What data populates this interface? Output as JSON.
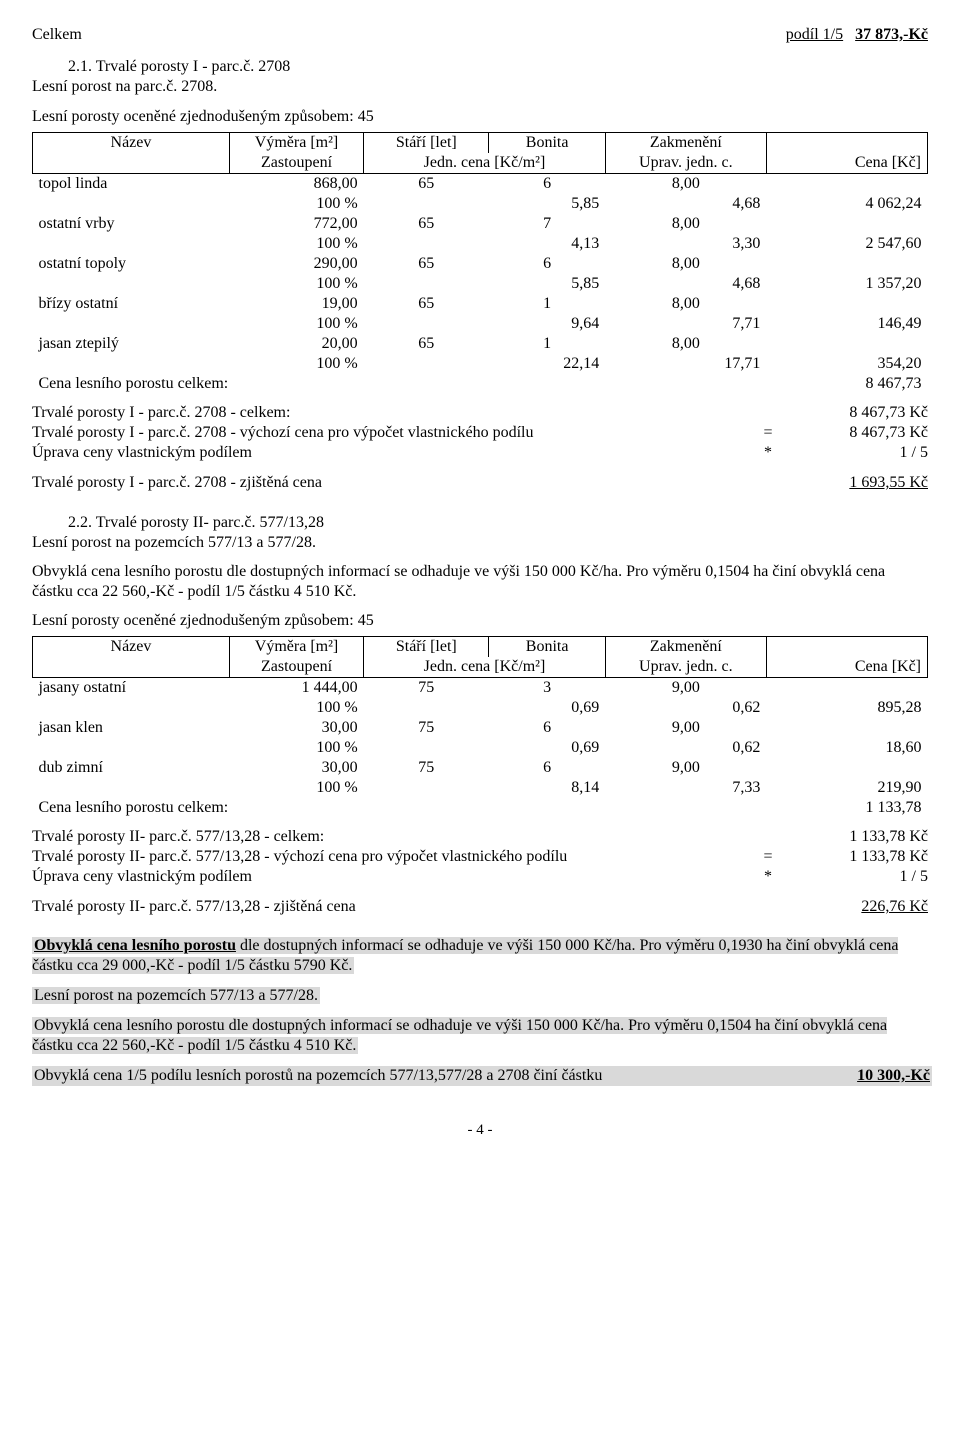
{
  "top": {
    "left": "Celkem",
    "right_label": "podíl 1/5",
    "right_value": "37 873,-Kč"
  },
  "sec21": {
    "title": "2.1. Trvalé porosty I - parc.č. 2708",
    "subtitle": "Lesní porost na parc.č. 2708.",
    "method": "Lesní porosty oceněné zjednodušeným způsobem: 45",
    "header": {
      "nazev": "Název",
      "vymera": "Výměra [m²]",
      "stari": "Stáří [let]",
      "bonita": "Bonita",
      "zakm": "Zakmenění",
      "zast": "Zastoupení",
      "jedn": "Jedn. cena [Kč/m²]",
      "uprav": "Uprav. jedn. c.",
      "cena": "Cena [Kč]"
    },
    "rows": [
      {
        "name": "topol linda",
        "v1": "868,00",
        "v2": "65",
        "v3": "6",
        "v4": "8,00",
        "p": "100 %",
        "j": "5,85",
        "u": "4,68",
        "c": "4 062,24"
      },
      {
        "name": "ostatní vrby",
        "v1": "772,00",
        "v2": "65",
        "v3": "7",
        "v4": "8,00",
        "p": "100 %",
        "j": "4,13",
        "u": "3,30",
        "c": "2 547,60"
      },
      {
        "name": "ostatní topoly",
        "v1": "290,00",
        "v2": "65",
        "v3": "6",
        "v4": "8,00",
        "p": "100 %",
        "j": "5,85",
        "u": "4,68",
        "c": "1 357,20"
      },
      {
        "name": "břízy ostatní",
        "v1": "19,00",
        "v2": "65",
        "v3": "1",
        "v4": "8,00",
        "p": "100 %",
        "j": "9,64",
        "u": "7,71",
        "c": "146,49"
      },
      {
        "name": "jasan ztepilý",
        "v1": "20,00",
        "v2": "65",
        "v3": "1",
        "v4": "8,00",
        "p": "100 %",
        "j": "22,14",
        "u": "17,71",
        "c": "354,20"
      }
    ],
    "total_label": "Cena lesního porostu celkem:",
    "total_value": "8 467,73",
    "sum": [
      {
        "l": "Trvalé porosty I - parc.č. 2708 - celkem:",
        "m": "",
        "r": "8 467,73 Kč"
      },
      {
        "l": "Trvalé porosty I - parc.č. 2708 - výchozí cena pro výpočet vlastnického podílu",
        "m": "=",
        "r": "8 467,73 Kč"
      },
      {
        "l": "Úprava ceny vlastnickým podílem",
        "m": "*",
        "r": "1 / 5"
      }
    ],
    "final_l": "Trvalé porosty I - parc.č. 2708 - zjištěná cena",
    "final_r": "1 693,55 Kč"
  },
  "sec22": {
    "title": "2.2. Trvalé porosty II- parc.č. 577/13,28",
    "subtitle": "Lesní porost na pozemcích 577/13 a 577/28.",
    "para1": "Obvyklá cena lesního porostu dle dostupných informací se odhaduje ve výši 150 000 Kč/ha. Pro výměru 0,1504 ha činí obvyklá cena částku cca 22 560,-Kč - podíl 1/5 částku 4 510 Kč.",
    "method": "Lesní porosty oceněné zjednodušeným způsobem: 45",
    "rows": [
      {
        "name": "jasany ostatní",
        "v1": "1 444,00",
        "v2": "75",
        "v3": "3",
        "v4": "9,00",
        "p": "100 %",
        "j": "0,69",
        "u": "0,62",
        "c": "895,28"
      },
      {
        "name": "jasan klen",
        "v1": "30,00",
        "v2": "75",
        "v3": "6",
        "v4": "9,00",
        "p": "100 %",
        "j": "0,69",
        "u": "0,62",
        "c": "18,60"
      },
      {
        "name": "dub zimní",
        "v1": "30,00",
        "v2": "75",
        "v3": "6",
        "v4": "9,00",
        "p": "100 %",
        "j": "8,14",
        "u": "7,33",
        "c": "219,90"
      }
    ],
    "total_label": "Cena lesního porostu celkem:",
    "total_value": "1 133,78",
    "sum": [
      {
        "l": "Trvalé porosty II- parc.č. 577/13,28 - celkem:",
        "m": "",
        "r": "1 133,78 Kč"
      },
      {
        "l": "Trvalé porosty II- parc.č. 577/13,28 - výchozí cena pro výpočet vlastnického podílu",
        "m": "=",
        "r": "1 133,78 Kč"
      },
      {
        "l": "Úprava ceny vlastnickým podílem",
        "m": "*",
        "r": "1 / 5"
      }
    ],
    "final_l": "Trvalé porosty II- parc.č. 577/13,28 - zjištěná cena",
    "final_r": "226,76 Kč"
  },
  "hl": {
    "p1_a": "Obvyklá cena lesního porostu",
    "p1_b": " dle dostupných informací se odhaduje ve výši 150 000 Kč/ha. Pro výměru 0,1930 ha činí obvyklá cena částku cca 29 000,-Kč - podíl 1/5 částku 5790 Kč.",
    "p2": "Lesní porost na pozemcích 577/13 a 577/28.",
    "p3": "Obvyklá cena lesního porostu dle dostupných informací se odhaduje ve výši 150 000 Kč/ha. Pro výměru 0,1504 ha činí obvyklá cena částku cca 22 560,-Kč - podíl 1/5 částku 4 510 Kč.",
    "p4_l": "Obvyklá cena 1/5 podílu lesních porostů na pozemcích 577/13,577/28 a 2708 činí částku",
    "p4_r": "10 300,-Kč"
  },
  "footer": "- 4 -"
}
